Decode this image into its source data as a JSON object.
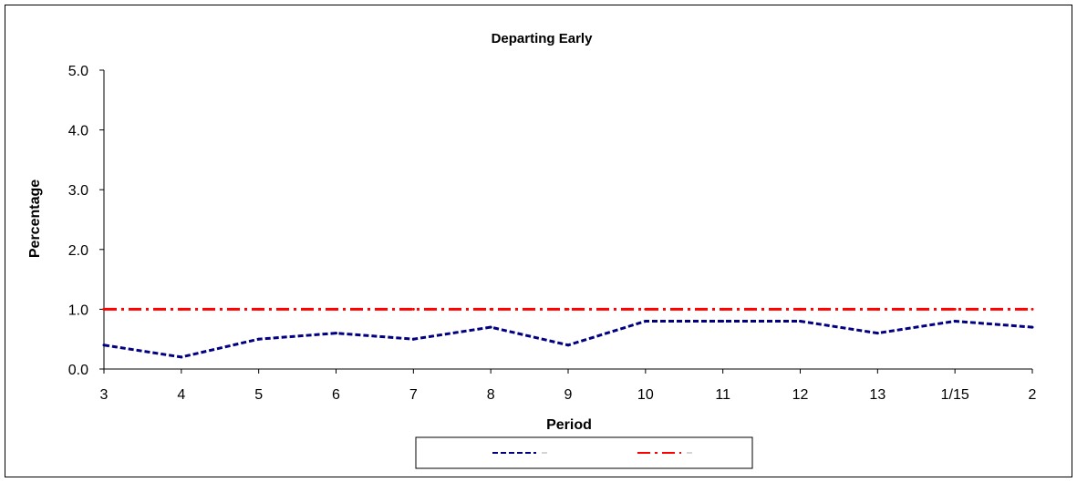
{
  "chart_data": {
    "type": "line",
    "title": "Departing Early",
    "xlabel": "Period",
    "ylabel": "Percentage",
    "categories": [
      "3",
      "4",
      "5",
      "6",
      "7",
      "8",
      "9",
      "10",
      "11",
      "12",
      "13",
      "1/15",
      "2"
    ],
    "ylim": [
      0,
      5
    ],
    "yticks": [
      "0.0",
      "1.0",
      "2.0",
      "3.0",
      "4.0",
      "5.0"
    ],
    "grid": false,
    "legend_position": "bottom",
    "series": [
      {
        "values": [
          0.4,
          0.2,
          0.5,
          0.6,
          0.5,
          0.7,
          0.4,
          0.8,
          0.8,
          0.8,
          0.6,
          0.8,
          0.7
        ],
        "color": "#000080",
        "dash": "dashed"
      },
      {
        "values": [
          1.0,
          1.0,
          1.0,
          1.0,
          1.0,
          1.0,
          1.0,
          1.0,
          1.0,
          1.0,
          1.0,
          1.0,
          1.0
        ],
        "color": "#ff0000",
        "dash": "dash-dot"
      }
    ]
  }
}
